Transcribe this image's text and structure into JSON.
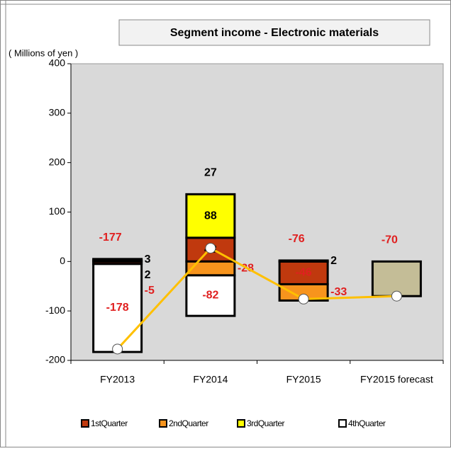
{
  "chart_data": {
    "type": "stacked-bar-line",
    "title": "Segment income - Electronic materials",
    "y_axis_label": "( Millions of yen )",
    "categories": [
      "FY2013",
      "FY2014",
      "FY2015",
      "FY2015 forecast"
    ],
    "series": [
      {
        "name": "1stQuarter",
        "color": "#c0390e",
        "values": [
          -5,
          48,
          -46,
          null
        ]
      },
      {
        "name": "2ndQuarter",
        "color": "#f7941d",
        "values": [
          2,
          -28,
          -33,
          null
        ]
      },
      {
        "name": "3rdQuarter",
        "color": "#ffff00",
        "values": [
          3,
          88,
          2,
          null
        ]
      },
      {
        "name": "4thQuarter",
        "color": "#ffffff",
        "values": [
          -178,
          -82,
          null,
          null
        ]
      }
    ],
    "totals": {
      "color": "#ffc000",
      "values": [
        -177,
        27,
        -76,
        -70
      ]
    },
    "forecast_bar_color": "#c4bd97",
    "ylim": [
      -200,
      400
    ],
    "yticks": [
      -200,
      -100,
      0,
      100,
      200,
      300,
      400
    ],
    "plot_background": "#d9d9d9"
  }
}
